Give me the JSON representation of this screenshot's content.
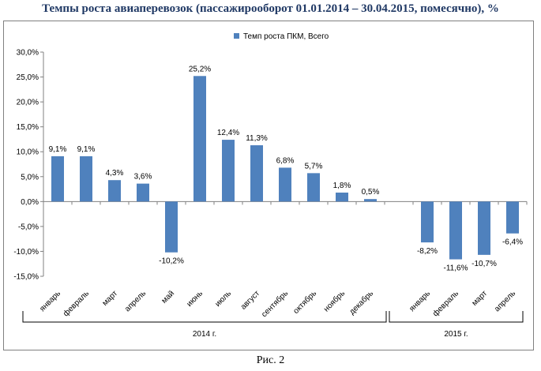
{
  "title": "Темпы роста авиаперевозок (пассажирооборот 01.01.2014 – 30.04.2015, помесячно), %",
  "caption": "Рис. 2",
  "chart_data": {
    "type": "bar",
    "title": "Темпы роста авиаперевозок (пассажирооборот 01.01.2014 – 30.04.2015, помесячно), %",
    "legend": {
      "position": "top",
      "entries": [
        "Темп роста ПКМ, Всего"
      ]
    },
    "series": [
      {
        "name": "Темп роста ПКМ, Всего",
        "color": "#4f81bd",
        "values": [
          9.1,
          9.1,
          4.3,
          3.6,
          -10.2,
          25.2,
          12.4,
          11.3,
          6.8,
          5.7,
          1.8,
          0.5,
          null,
          -8.2,
          -11.6,
          -10.7,
          -6.4
        ],
        "labels": [
          "9,1%",
          "9,1%",
          "4,3%",
          "3,6%",
          "-10,2%",
          "25,2%",
          "12,4%",
          "11,3%",
          "6,8%",
          "5,7%",
          "1,8%",
          "0,5%",
          "",
          "-8,2%",
          "-11,6%",
          "-10,7%",
          "-6,4%"
        ]
      }
    ],
    "categories": [
      "январь",
      "февраль",
      "март",
      "апрель",
      "май",
      "июнь",
      "июль",
      "август",
      "сентябрь",
      "октябрь",
      "ноябрь",
      "декабрь",
      "",
      "январь",
      "февраль",
      "март",
      "апрель"
    ],
    "groups": [
      {
        "label": "2014 г.",
        "from": 0,
        "to": 11
      },
      {
        "label": "2015 г.",
        "from": 13,
        "to": 16
      }
    ],
    "ylim": [
      -15,
      30
    ],
    "yticks": [
      30,
      25,
      20,
      15,
      10,
      5,
      0,
      -5,
      -10,
      -15
    ],
    "ytick_labels": [
      "30,0%",
      "25,0%",
      "20,0%",
      "15,0%",
      "10,0%",
      "5,0%",
      "0,0%",
      "-5,0%",
      "-10,0%",
      "-15,0%"
    ],
    "grid": false
  }
}
